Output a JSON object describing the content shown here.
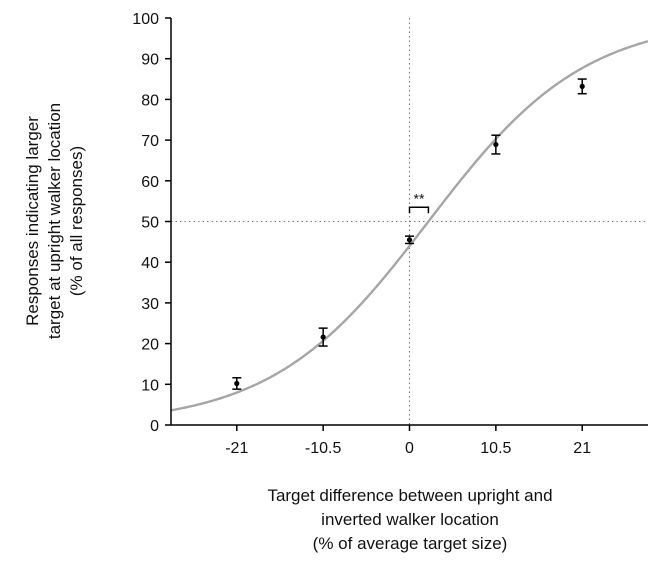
{
  "chart_data": {
    "type": "scatter",
    "title": "",
    "xlabel_lines": [
      "Target difference between upright and",
      "inverted walker location",
      "(% of average target size)"
    ],
    "ylabel_lines": [
      "Responses indicating larger",
      "target at upright walker location",
      "(% of all responses)"
    ],
    "xlim": [
      -29,
      29
    ],
    "ylim": [
      0,
      100
    ],
    "x_ticks": [
      -21,
      -10.5,
      0,
      10.5,
      21
    ],
    "x_tick_labels": [
      "-21",
      "-10.5",
      "0",
      "10.5",
      "21"
    ],
    "y_ticks": [
      0,
      10,
      20,
      30,
      40,
      50,
      60,
      70,
      80,
      90,
      100
    ],
    "y_tick_labels": [
      "0",
      "10",
      "20",
      "30",
      "40",
      "50",
      "60",
      "70",
      "80",
      "90",
      "100"
    ],
    "points": [
      {
        "x": -21,
        "y": 10.2,
        "err": 1.4
      },
      {
        "x": -10.5,
        "y": 21.6,
        "err": 2.2
      },
      {
        "x": 0,
        "y": 45.5,
        "err": 0.9
      },
      {
        "x": 10.5,
        "y": 68.9,
        "err": 2.3
      },
      {
        "x": 21,
        "y": 83.2,
        "err": 1.8
      }
    ],
    "fit_curve": {
      "type": "logistic",
      "midpoint": 2.3,
      "slope": 0.105,
      "color": "#a6a6a6"
    },
    "reference_lines": {
      "x": 0,
      "y": 50,
      "style": "dotted"
    },
    "significance": {
      "label": "**",
      "x_from": 0,
      "x_to": 2.3,
      "y": 53.5
    }
  }
}
